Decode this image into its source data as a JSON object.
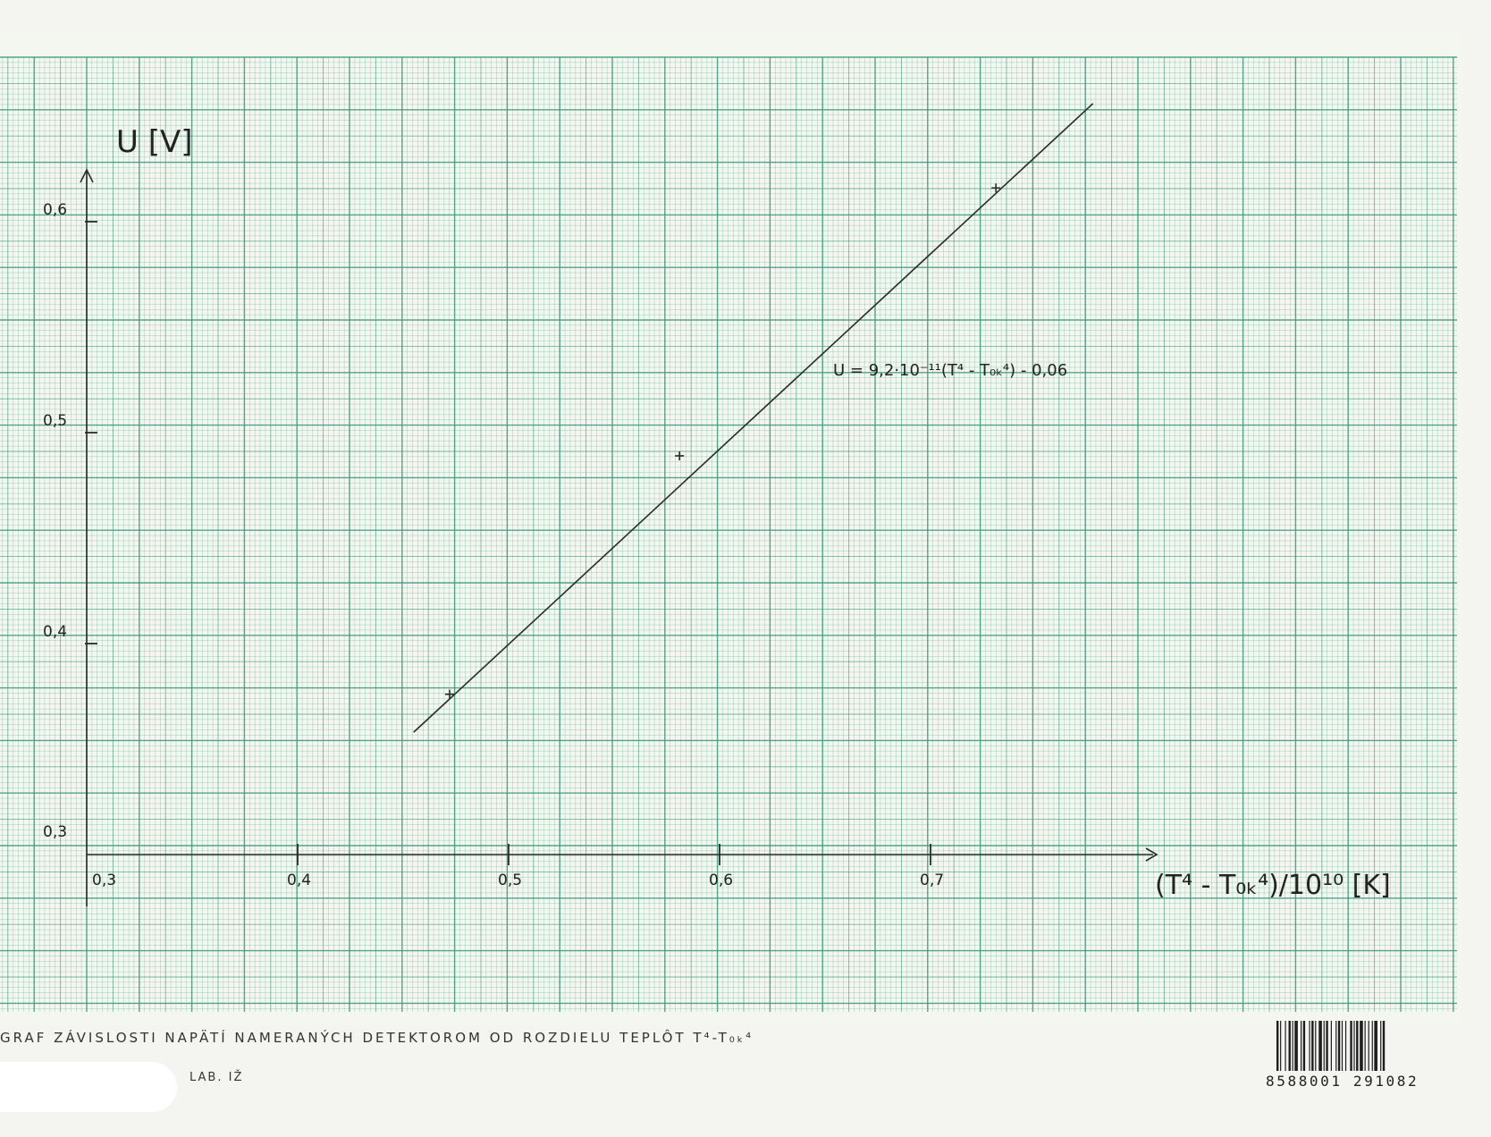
{
  "chart_data": {
    "type": "line",
    "title": "GRAF ZÁVISLOSTI NAPÄTÍ NAMERANÝCH DETEKTOROM OD ROZDIELU TEPLÔT T⁴ - T₀ₖ⁴",
    "subtitle": "LAB. IŽ",
    "xlabel": "(T⁴ - T₀ₖ⁴)/10¹⁰ [K]",
    "ylabel": "U [V]",
    "xlim": [
      0.3,
      0.75
    ],
    "ylim": [
      0.3,
      0.66
    ],
    "x_ticks": [
      "0,3",
      "0,4",
      "0,5",
      "0,6",
      "0,7"
    ],
    "x_tick_values": [
      0.3,
      0.4,
      0.5,
      0.6,
      0.7
    ],
    "y_ticks": [
      "0,3",
      "0,4",
      "0,5",
      "0,6"
    ],
    "y_tick_values": [
      0.3,
      0.4,
      0.5,
      0.6
    ],
    "fit_label": "U = 9,2·10⁻¹¹(T⁴ - T₀ₖ⁴) - 0,06",
    "series": [
      {
        "kind": "points",
        "x": [
          0.472,
          0.581,
          0.731
        ],
        "y": [
          0.376,
          0.489,
          0.616
        ]
      },
      {
        "kind": "fit-line",
        "x": [
          0.455,
          0.777
        ],
        "y": [
          0.358,
          0.656
        ]
      }
    ],
    "grid": true,
    "colors": {
      "grid": "#3f9a80",
      "ink": "#2a2a2a",
      "paper": "#f4f7f0"
    }
  },
  "footer": {
    "caption": "GRAF ZÁVISLOSTI NAPÄTÍ NAMERANÝCH DETEKTOROM OD ROZDIELU TEPLÔT T⁴-T₀ₖ⁴",
    "lab": "LAB. IŽ",
    "barcode_number": "8588001 291082"
  }
}
